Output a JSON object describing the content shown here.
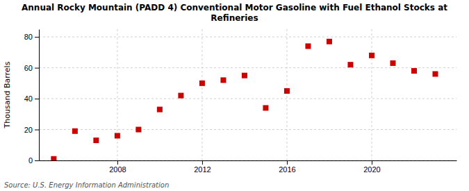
{
  "chart_data": {
    "type": "scatter",
    "title": "Annual Rocky Mountain (PADD 4) Conventional Motor Gasoline with Fuel Ethanol Stocks at\nRefineries",
    "y_label": "Thousand Barrels",
    "annotations": [
      "Source: U.S. Energy Information Administration"
    ],
    "x": [
      2005,
      2006,
      2007,
      2008,
      2009,
      2010,
      2011,
      2012,
      2013,
      2014,
      2015,
      2016,
      2017,
      2018,
      2019,
      2020,
      2021,
      2022,
      2023
    ],
    "values": [
      1,
      19,
      13,
      16,
      20,
      33,
      42,
      50,
      52,
      55,
      34,
      45,
      74,
      77,
      62,
      68,
      63,
      58,
      56
    ],
    "color": "#cc0000",
    "marker": "square",
    "xlim": [
      2004.3,
      2024.0
    ],
    "xticks": [
      2008,
      2012,
      2016,
      2020
    ],
    "ylim": [
      0,
      85
    ],
    "yticks": [
      0,
      20,
      40,
      60,
      80
    ],
    "grid": true
  }
}
